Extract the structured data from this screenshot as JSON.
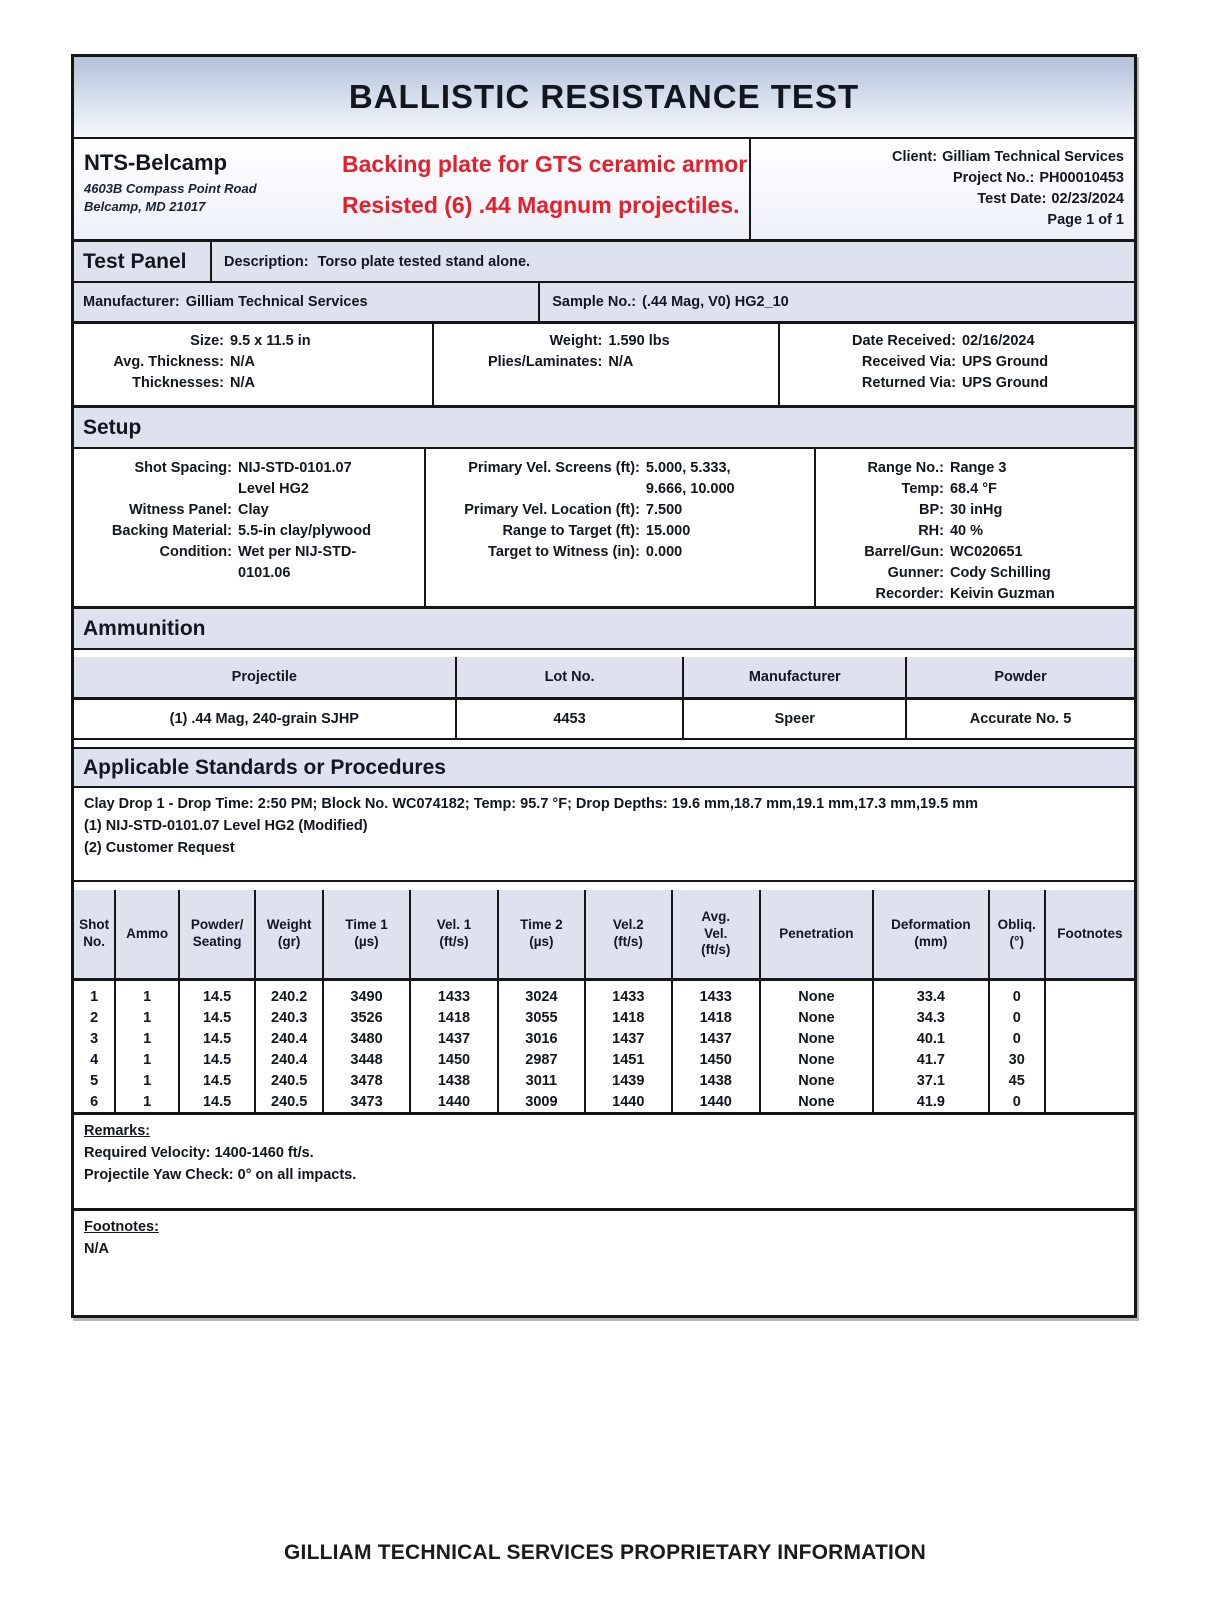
{
  "title": "BALLISTIC RESISTANCE TEST",
  "theme": {
    "section_header_bg": "#dde2ee",
    "title_gradient_top": "#b2c0da",
    "annotation_red": "#e71f2b"
  },
  "annotation": {
    "line1": "Backing plate for GTS ceramic armor",
    "line2": "Resisted (6) .44 Magnum projectiles.",
    "color": "#e71f2b"
  },
  "lab": {
    "name": "NTS-Belcamp",
    "address_line1": "4603B Compass Point Road",
    "address_line2": "Belcamp, MD 21017"
  },
  "header_fields": [
    {
      "label": "Client:",
      "value": "Gilliam Technical Services"
    },
    {
      "label": "Project No.:",
      "value": "PH00010453"
    },
    {
      "label": "Test Date:",
      "value": "02/23/2024"
    },
    {
      "label": "",
      "value": "Page 1 of 1"
    }
  ],
  "test_panel": {
    "section_title": "Test Panel",
    "description_label": "Description:",
    "description": "Torso plate tested stand alone.",
    "manufacturer_label": "Manufacturer:",
    "manufacturer": "Gilliam Technical Services",
    "sample_no_label": "Sample No.:",
    "sample_no": "(.44 Mag, V0) HG2_10",
    "col1": [
      {
        "label": "Size:",
        "value": "9.5 x 11.5 in"
      },
      {
        "label": "Avg. Thickness:",
        "value": "N/A"
      },
      {
        "label": "Thicknesses:",
        "value": "N/A"
      }
    ],
    "col2": [
      {
        "label": "Weight:",
        "value": "1.590 lbs"
      },
      {
        "label": "Plies/Laminates:",
        "value": "N/A"
      }
    ],
    "col3": [
      {
        "label": "Date Received:",
        "value": "02/16/2024"
      },
      {
        "label": "Received Via:",
        "value": "UPS Ground"
      },
      {
        "label": "Returned Via:",
        "value": "UPS Ground"
      }
    ]
  },
  "setup": {
    "section_title": "Setup",
    "col1": [
      {
        "label": "Shot Spacing:",
        "value": "NIJ-STD-0101.07\nLevel HG2"
      },
      {
        "label": "Witness Panel:",
        "value": "Clay"
      },
      {
        "label": "Backing Material:",
        "value": "5.5-in clay/plywood"
      },
      {
        "label": "Condition:",
        "value": "Wet per NIJ-STD-\n0101.06"
      }
    ],
    "col2": [
      {
        "label": "Primary Vel. Screens (ft):",
        "value": "5.000, 5.333,\n9.666, 10.000"
      },
      {
        "label": "Primary Vel. Location (ft):",
        "value": "7.500"
      },
      {
        "label": "Range to Target (ft):",
        "value": "15.000"
      },
      {
        "label": "Target to Witness (in):",
        "value": "0.000"
      }
    ],
    "col3": [
      {
        "label": "Range No.:",
        "value": "Range 3"
      },
      {
        "label": "Temp:",
        "value": "68.4 °F"
      },
      {
        "label": "BP:",
        "value": "30 inHg"
      },
      {
        "label": "RH:",
        "value": "40 %"
      },
      {
        "label": "Barrel/Gun:",
        "value": "WC020651"
      },
      {
        "label": "Gunner:",
        "value": "Cody Schilling"
      },
      {
        "label": "Recorder:",
        "value": "Keivin Guzman"
      }
    ]
  },
  "ammunition": {
    "section_title": "Ammunition",
    "columns": [
      "Projectile",
      "Lot No.",
      "Manufacturer",
      "Powder"
    ],
    "row": [
      "(1) .44 Mag, 240-grain SJHP",
      "4453",
      "Speer",
      "Accurate No. 5"
    ]
  },
  "standards": {
    "section_title": "Applicable Standards or Procedures",
    "lines": [
      "Clay Drop 1 - Drop Time: 2:50 PM; Block No. WC074182; Temp: 95.7 °F; Drop Depths: 19.6 mm,18.7 mm,19.1 mm,17.3 mm,19.5 mm",
      "(1) NIJ-STD-0101.07 Level HG2 (Modified)",
      "(2) Customer Request"
    ]
  },
  "results": {
    "columns": [
      "Shot\nNo.",
      "Ammo",
      "Powder/\nSeating",
      "Weight\n(gr)",
      "Time 1\n(µs)",
      "Vel. 1\n(ft/s)",
      "Time 2\n(µs)",
      "Vel.2\n(ft/s)",
      "Avg.\nVel.\n(ft/s)",
      "Penetration",
      "Deformation\n(mm)",
      "Obliq.\n(°)",
      "Footnotes"
    ],
    "rows": [
      [
        "1",
        "1",
        "14.5",
        "240.2",
        "3490",
        "1433",
        "3024",
        "1433",
        "1433",
        "None",
        "33.4",
        "0",
        ""
      ],
      [
        "2",
        "1",
        "14.5",
        "240.3",
        "3526",
        "1418",
        "3055",
        "1418",
        "1418",
        "None",
        "34.3",
        "0",
        ""
      ],
      [
        "3",
        "1",
        "14.5",
        "240.4",
        "3480",
        "1437",
        "3016",
        "1437",
        "1437",
        "None",
        "40.1",
        "0",
        ""
      ],
      [
        "4",
        "1",
        "14.5",
        "240.4",
        "3448",
        "1450",
        "2987",
        "1451",
        "1450",
        "None",
        "41.7",
        "30",
        ""
      ],
      [
        "5",
        "1",
        "14.5",
        "240.5",
        "3478",
        "1438",
        "3011",
        "1439",
        "1438",
        "None",
        "37.1",
        "45",
        ""
      ],
      [
        "6",
        "1",
        "14.5",
        "240.5",
        "3473",
        "1440",
        "3009",
        "1440",
        "1440",
        "None",
        "41.9",
        "0",
        ""
      ]
    ]
  },
  "remarks": {
    "heading": "Remarks:",
    "lines": [
      "Required Velocity: 1400-1460 ft/s.",
      "Projectile Yaw Check: 0° on all impacts."
    ]
  },
  "footnotes": {
    "heading": "Footnotes:",
    "lines": [
      "N/A"
    ]
  },
  "footer": "GILLIAM TECHNICAL SERVICES PROPRIETARY INFORMATION"
}
